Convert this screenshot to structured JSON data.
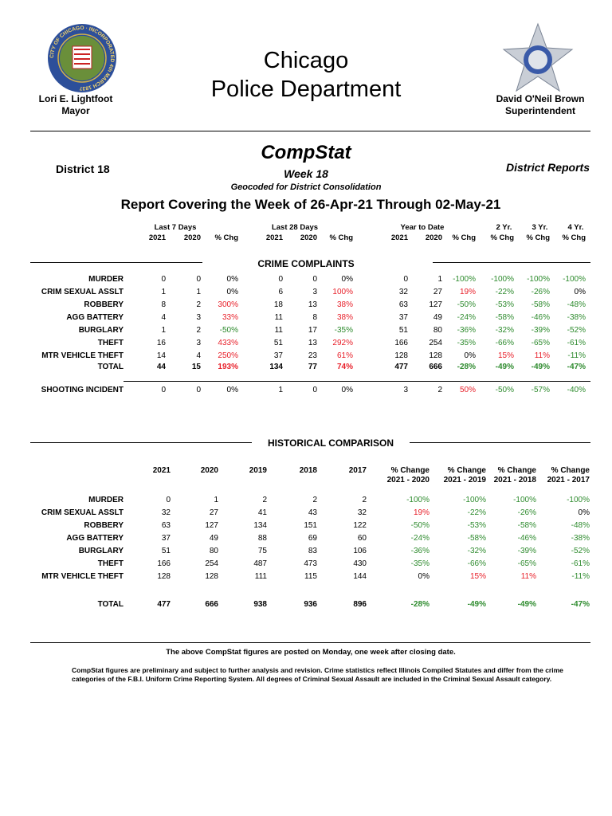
{
  "header": {
    "title_line1": "Chicago",
    "title_line2": "Police Department",
    "mayor_name": "Lori E. Lightfoot",
    "mayor_title": "Mayor",
    "supt_name": "David O'Neil Brown",
    "supt_title": "Superintendent",
    "city_seal_text": "CITY OF CHICAGO · INCORPORATED 4th MARCH 1837"
  },
  "compstat": {
    "district": "District 18",
    "title": "CompStat",
    "week": "Week 18",
    "subtitle": "Geocoded for District Consolidation",
    "right": "District Reports",
    "report_title": "Report Covering the Week of 26-Apr-21 Through 02-May-21"
  },
  "colors": {
    "increase": "#e8202a",
    "decrease": "#2e8b2e",
    "neutral": "#000000"
  },
  "complaints": {
    "section_title": "CRIME COMPLAINTS",
    "groups": [
      "Last 7 Days",
      "Last 28 Days",
      "Year to Date",
      "2 Yr.",
      "3 Yr.",
      "4 Yr."
    ],
    "columns": [
      "2021",
      "2020",
      "% Chg",
      "2021",
      "2020",
      "% Chg",
      "2021",
      "2020",
      "% Chg",
      "% Chg",
      "% Chg",
      "% Chg"
    ],
    "rows": [
      {
        "label": "MURDER",
        "values": [
          "0",
          "0",
          "0%",
          "0",
          "0",
          "0%",
          "0",
          "1",
          "-100%",
          "-100%",
          "-100%",
          "-100%"
        ]
      },
      {
        "label": "CRIM SEXUAL ASSLT",
        "values": [
          "1",
          "1",
          "0%",
          "6",
          "3",
          "100%",
          "32",
          "27",
          "19%",
          "-22%",
          "-26%",
          "0%"
        ]
      },
      {
        "label": "ROBBERY",
        "values": [
          "8",
          "2",
          "300%",
          "18",
          "13",
          "38%",
          "63",
          "127",
          "-50%",
          "-53%",
          "-58%",
          "-48%"
        ]
      },
      {
        "label": "AGG BATTERY",
        "values": [
          "4",
          "3",
          "33%",
          "11",
          "8",
          "38%",
          "37",
          "49",
          "-24%",
          "-58%",
          "-46%",
          "-38%"
        ]
      },
      {
        "label": "BURGLARY",
        "values": [
          "1",
          "2",
          "-50%",
          "11",
          "17",
          "-35%",
          "51",
          "80",
          "-36%",
          "-32%",
          "-39%",
          "-52%"
        ]
      },
      {
        "label": "THEFT",
        "values": [
          "16",
          "3",
          "433%",
          "51",
          "13",
          "292%",
          "166",
          "254",
          "-35%",
          "-66%",
          "-65%",
          "-61%"
        ]
      },
      {
        "label": "MTR VEHICLE THEFT",
        "values": [
          "14",
          "4",
          "250%",
          "37",
          "23",
          "61%",
          "128",
          "128",
          "0%",
          "15%",
          "11%",
          "-11%"
        ]
      }
    ],
    "total": {
      "label": "TOTAL",
      "values": [
        "44",
        "15",
        "193%",
        "134",
        "77",
        "74%",
        "477",
        "666",
        "-28%",
        "-49%",
        "-49%",
        "-47%"
      ]
    },
    "shooting": {
      "label": "SHOOTING INCIDENT",
      "values": [
        "0",
        "0",
        "0%",
        "1",
        "0",
        "0%",
        "3",
        "2",
        "50%",
        "-50%",
        "-57%",
        "-40%"
      ]
    }
  },
  "historical": {
    "section_title": "HISTORICAL COMPARISON",
    "columns": [
      [
        "2021",
        ""
      ],
      [
        "2020",
        ""
      ],
      [
        "2019",
        ""
      ],
      [
        "2018",
        ""
      ],
      [
        "2017",
        ""
      ],
      [
        "% Change",
        "2021 - 2020"
      ],
      [
        "% Change",
        "2021 - 2019"
      ],
      [
        "% Change",
        "2021 - 2018"
      ],
      [
        "% Change",
        "2021 - 2017"
      ]
    ],
    "rows": [
      {
        "label": "MURDER",
        "values": [
          "0",
          "1",
          "2",
          "2",
          "2",
          "-100%",
          "-100%",
          "-100%",
          "-100%"
        ]
      },
      {
        "label": "CRIM SEXUAL ASSLT",
        "values": [
          "32",
          "27",
          "41",
          "43",
          "32",
          "19%",
          "-22%",
          "-26%",
          "0%"
        ]
      },
      {
        "label": "ROBBERY",
        "values": [
          "63",
          "127",
          "134",
          "151",
          "122",
          "-50%",
          "-53%",
          "-58%",
          "-48%"
        ]
      },
      {
        "label": "AGG BATTERY",
        "values": [
          "37",
          "49",
          "88",
          "69",
          "60",
          "-24%",
          "-58%",
          "-46%",
          "-38%"
        ]
      },
      {
        "label": "BURGLARY",
        "values": [
          "51",
          "80",
          "75",
          "83",
          "106",
          "-36%",
          "-32%",
          "-39%",
          "-52%"
        ]
      },
      {
        "label": "THEFT",
        "values": [
          "166",
          "254",
          "487",
          "473",
          "430",
          "-35%",
          "-66%",
          "-65%",
          "-61%"
        ]
      },
      {
        "label": "MTR VEHICLE THEFT",
        "values": [
          "128",
          "128",
          "111",
          "115",
          "144",
          "0%",
          "15%",
          "11%",
          "-11%"
        ]
      }
    ],
    "total": {
      "label": "TOTAL",
      "values": [
        "477",
        "666",
        "938",
        "936",
        "896",
        "-28%",
        "-49%",
        "-49%",
        "-47%"
      ]
    }
  },
  "footer": {
    "posted_note": "The above CompStat figures are posted on Monday, one week after closing date.",
    "disclaimer": "CompStat figures are preliminary and subject to further analysis and revision.  Crime statistics reflect Illinois Compiled Statutes and differ from the crime categories of the F.B.I. Uniform Crime Reporting System.  All degrees of Criminal Sexual Assault are included in the Criminal Sexual Assault category."
  }
}
